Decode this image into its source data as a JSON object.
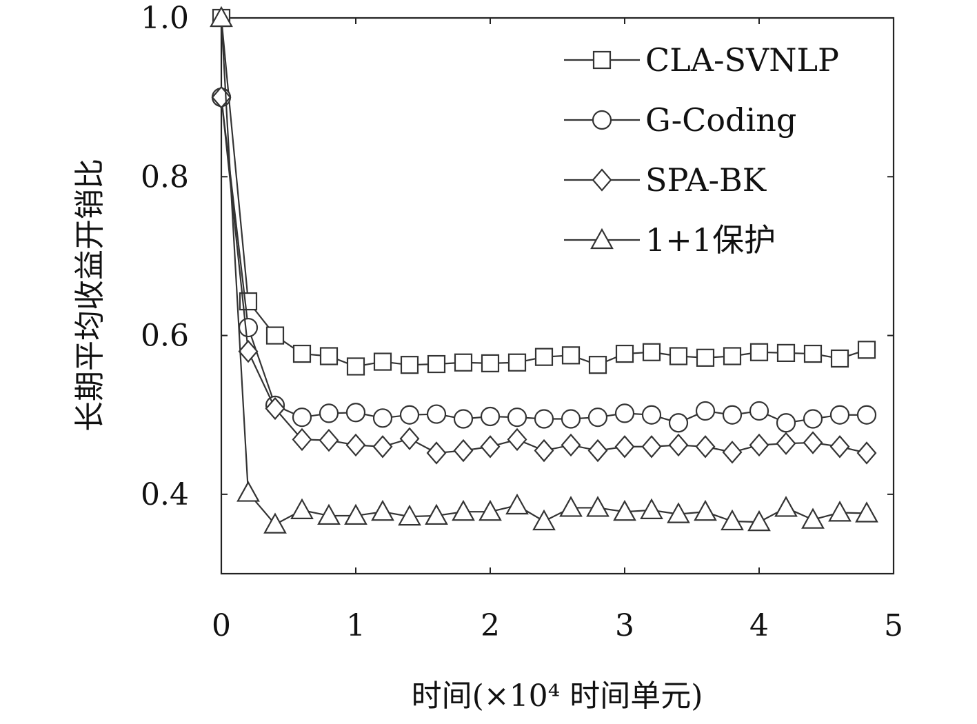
{
  "chart_data": {
    "type": "line",
    "title": "",
    "xlabel": "时间(×10⁴ 时间单元)",
    "ylabel": "长期平均收益开销比",
    "xlim": [
      0,
      5
    ],
    "ylim": [
      0.3,
      1.0
    ],
    "xticks": [
      {
        "value": 0,
        "label": "0"
      },
      {
        "value": 1,
        "label": "1"
      },
      {
        "value": 2,
        "label": "2"
      },
      {
        "value": 3,
        "label": "3"
      },
      {
        "value": 4,
        "label": "4"
      },
      {
        "value": 5,
        "label": "5"
      }
    ],
    "yticks": [
      {
        "value": 0.4,
        "label": "0.4"
      },
      {
        "value": 0.6,
        "label": "0.6"
      },
      {
        "value": 0.8,
        "label": "0.8"
      },
      {
        "value": 1.0,
        "label": "1.0"
      }
    ],
    "grid": false,
    "legend_position": "top-right",
    "x": [
      0,
      0.2,
      0.4,
      0.6,
      0.8,
      1.0,
      1.2,
      1.4,
      1.6,
      1.8,
      2.0,
      2.2,
      2.4,
      2.6,
      2.8,
      3.0,
      3.2,
      3.4,
      3.6,
      3.8,
      4.0,
      4.2,
      4.4,
      4.6,
      4.8
    ],
    "series": [
      {
        "name": "CLA-SVNLP",
        "marker": "square",
        "values": [
          1.0,
          0.643,
          0.6,
          0.577,
          0.574,
          0.561,
          0.567,
          0.563,
          0.564,
          0.566,
          0.565,
          0.566,
          0.573,
          0.575,
          0.563,
          0.577,
          0.579,
          0.574,
          0.572,
          0.574,
          0.579,
          0.578,
          0.577,
          0.571,
          0.582
        ]
      },
      {
        "name": "G-Coding",
        "marker": "circle",
        "values": [
          0.9,
          0.61,
          0.512,
          0.497,
          0.502,
          0.503,
          0.496,
          0.5,
          0.501,
          0.495,
          0.498,
          0.497,
          0.495,
          0.495,
          0.497,
          0.502,
          0.5,
          0.49,
          0.505,
          0.5,
          0.505,
          0.49,
          0.495,
          0.5,
          0.5
        ]
      },
      {
        "name": "SPA-BK",
        "marker": "diamond",
        "values": [
          0.9,
          0.58,
          0.508,
          0.469,
          0.468,
          0.462,
          0.46,
          0.47,
          0.452,
          0.455,
          0.46,
          0.469,
          0.455,
          0.462,
          0.455,
          0.46,
          0.46,
          0.462,
          0.46,
          0.453,
          0.462,
          0.464,
          0.465,
          0.46,
          0.452
        ]
      },
      {
        "name": "1+1保护",
        "marker": "triangle",
        "values": [
          1.0,
          0.402,
          0.362,
          0.38,
          0.373,
          0.373,
          0.378,
          0.372,
          0.373,
          0.378,
          0.378,
          0.386,
          0.366,
          0.383,
          0.383,
          0.378,
          0.38,
          0.375,
          0.378,
          0.366,
          0.365,
          0.383,
          0.368,
          0.377,
          0.376
        ]
      }
    ]
  }
}
